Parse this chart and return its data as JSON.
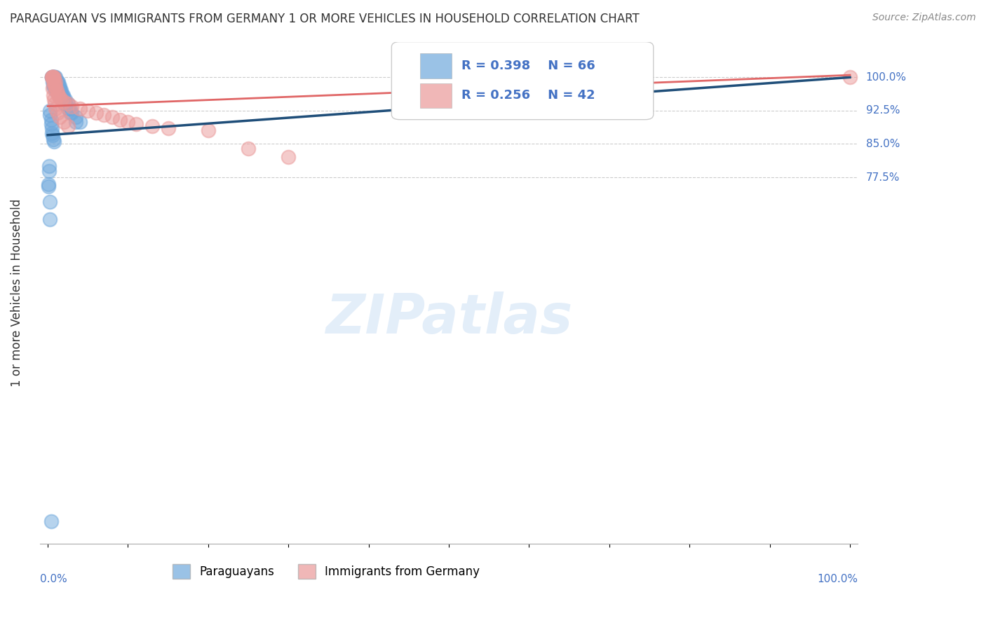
{
  "title": "PARAGUAYAN VS IMMIGRANTS FROM GERMANY 1 OR MORE VEHICLES IN HOUSEHOLD CORRELATION CHART",
  "source": "Source: ZipAtlas.com",
  "ylabel": "1 or more Vehicles in Household",
  "legend_labels": [
    "Paraguayans",
    "Immigrants from Germany"
  ],
  "r_blue": 0.398,
  "n_blue": 66,
  "r_pink": 0.256,
  "n_pink": 42,
  "blue_color": "#6fa8dc",
  "pink_color": "#ea9999",
  "blue_line_color": "#1f4e79",
  "pink_line_color": "#e06666",
  "blue_x": [
    0.005,
    0.005,
    0.006,
    0.006,
    0.006,
    0.007,
    0.007,
    0.007,
    0.007,
    0.008,
    0.008,
    0.008,
    0.009,
    0.009,
    0.009,
    0.01,
    0.01,
    0.01,
    0.01,
    0.011,
    0.011,
    0.012,
    0.012,
    0.012,
    0.013,
    0.013,
    0.014,
    0.014,
    0.015,
    0.015,
    0.015,
    0.016,
    0.016,
    0.017,
    0.017,
    0.018,
    0.018,
    0.019,
    0.02,
    0.02,
    0.022,
    0.022,
    0.025,
    0.025,
    0.028,
    0.028,
    0.03,
    0.035,
    0.035,
    0.04,
    0.003,
    0.003,
    0.004,
    0.004,
    0.005,
    0.005,
    0.006,
    0.007,
    0.008,
    0.002,
    0.002,
    0.001,
    0.001,
    0.003,
    0.003,
    0.004
  ],
  "blue_y": [
    1.0,
    1.0,
    1.0,
    1.0,
    0.99,
    1.0,
    1.0,
    0.99,
    0.98,
    1.0,
    0.99,
    0.98,
    1.0,
    0.99,
    0.98,
    1.0,
    0.99,
    0.98,
    0.97,
    0.99,
    0.98,
    0.99,
    0.98,
    0.97,
    0.99,
    0.97,
    0.98,
    0.97,
    0.98,
    0.97,
    0.96,
    0.97,
    0.96,
    0.97,
    0.96,
    0.96,
    0.95,
    0.96,
    0.95,
    0.94,
    0.95,
    0.94,
    0.94,
    0.93,
    0.93,
    0.92,
    0.92,
    0.91,
    0.9,
    0.9,
    0.925,
    0.915,
    0.905,
    0.895,
    0.885,
    0.875,
    0.87,
    0.86,
    0.855,
    0.8,
    0.79,
    0.76,
    0.755,
    0.72,
    0.68,
    0.0
  ],
  "pink_x": [
    0.005,
    0.005,
    0.006,
    0.006,
    0.007,
    0.007,
    0.008,
    0.008,
    0.009,
    0.01,
    0.01,
    0.011,
    0.012,
    0.013,
    0.015,
    0.017,
    0.02,
    0.025,
    0.03,
    0.04,
    0.05,
    0.06,
    0.07,
    0.08,
    0.09,
    0.1,
    0.11,
    0.13,
    0.15,
    0.2,
    0.25,
    0.3,
    0.006,
    0.007,
    0.008,
    0.009,
    0.01,
    0.012,
    0.015,
    0.02,
    0.025,
    1.0
  ],
  "pink_y": [
    1.0,
    1.0,
    1.0,
    1.0,
    1.0,
    0.99,
    1.0,
    0.99,
    0.98,
    0.99,
    0.98,
    0.97,
    0.965,
    0.96,
    0.955,
    0.95,
    0.945,
    0.94,
    0.935,
    0.93,
    0.925,
    0.92,
    0.915,
    0.91,
    0.905,
    0.9,
    0.895,
    0.89,
    0.885,
    0.88,
    0.84,
    0.82,
    0.975,
    0.96,
    0.95,
    0.94,
    0.93,
    0.92,
    0.91,
    0.9,
    0.89,
    1.0
  ],
  "ytick_vals": [
    0.775,
    0.85,
    0.925,
    1.0
  ],
  "ytick_labels": [
    "77.5%",
    "85.0%",
    "92.5%",
    "100.0%"
  ],
  "blue_slope": 0.13,
  "blue_intercept": 0.87,
  "pink_slope": 0.07,
  "pink_intercept": 0.935
}
